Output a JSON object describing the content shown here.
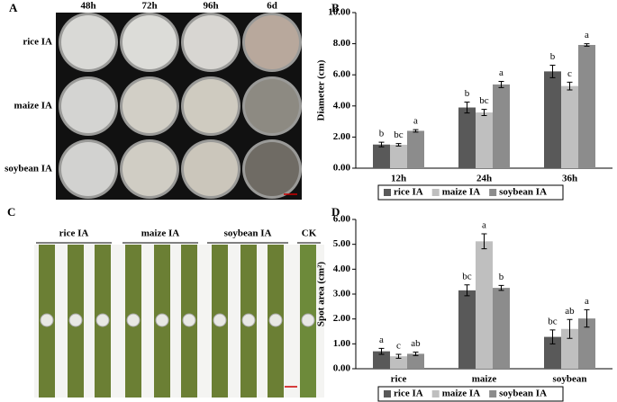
{
  "panels": {
    "A": {
      "label": "A",
      "columns": [
        "48h",
        "72h",
        "96h",
        "6d"
      ],
      "rows": [
        "rice IA",
        "maize IA",
        "soybean IA"
      ]
    },
    "C": {
      "label": "C",
      "groups": [
        "rice IA",
        "maize IA",
        "soybean IA",
        "CK"
      ]
    }
  },
  "chart_data": [
    {
      "type": "bar",
      "panel": "B",
      "y_label": "Diameter (cm)",
      "categories": [
        "12h",
        "24h",
        "36h"
      ],
      "series": [
        {
          "name": "rice IA",
          "color": "#595959",
          "values": [
            1.52,
            3.9,
            6.22
          ],
          "errors": [
            0.15,
            0.35,
            0.4
          ],
          "letters": [
            "b",
            "b",
            "b"
          ]
        },
        {
          "name": "maize IA",
          "color": "#bfbfbf",
          "values": [
            1.5,
            3.58,
            5.28
          ],
          "errors": [
            0.08,
            0.2,
            0.25
          ],
          "letters": [
            "bc",
            "bc",
            "c"
          ]
        },
        {
          "name": "soybean IA",
          "color": "#8c8c8c",
          "values": [
            2.4,
            5.38,
            7.92
          ],
          "errors": [
            0.08,
            0.2,
            0.08
          ],
          "letters": [
            "a",
            "a",
            "a"
          ]
        }
      ],
      "ylim": [
        0,
        10
      ],
      "yticks": [
        {
          "value": 0,
          "label": "0.00"
        },
        {
          "value": 2,
          "label": "2.00"
        },
        {
          "value": 4,
          "label": "4.00"
        },
        {
          "value": 6,
          "label": "6.00"
        },
        {
          "value": 8,
          "label": "8.00"
        },
        {
          "value": 10,
          "label": "10.00"
        }
      ],
      "legend": "bottom"
    },
    {
      "type": "bar",
      "panel": "D",
      "y_label": "Spot area (cm²)",
      "categories": [
        "rice",
        "maize",
        "soybean"
      ],
      "series": [
        {
          "name": "rice IA",
          "color": "#595959",
          "values": [
            0.7,
            3.15,
            1.28
          ],
          "errors": [
            0.12,
            0.22,
            0.28
          ],
          "letters": [
            "a",
            "bc",
            "bc"
          ]
        },
        {
          "name": "maize IA",
          "color": "#bfbfbf",
          "values": [
            0.5,
            5.12,
            1.6
          ],
          "errors": [
            0.08,
            0.3,
            0.38
          ],
          "letters": [
            "c",
            "a",
            "ab"
          ]
        },
        {
          "name": "soybean IA",
          "color": "#8c8c8c",
          "values": [
            0.6,
            3.25,
            2.02
          ],
          "errors": [
            0.07,
            0.1,
            0.35
          ],
          "letters": [
            "ab",
            "b",
            "a"
          ]
        }
      ],
      "ylim": [
        0,
        6
      ],
      "yticks": [
        {
          "value": 0,
          "label": "0.00"
        },
        {
          "value": 1,
          "label": "1.00"
        },
        {
          "value": 2,
          "label": "2.00"
        },
        {
          "value": 3,
          "label": "3.00"
        },
        {
          "value": 4,
          "label": "4.00"
        },
        {
          "value": 5,
          "label": "5.00"
        },
        {
          "value": 6,
          "label": "6.00"
        }
      ],
      "legend": "bottom"
    }
  ]
}
